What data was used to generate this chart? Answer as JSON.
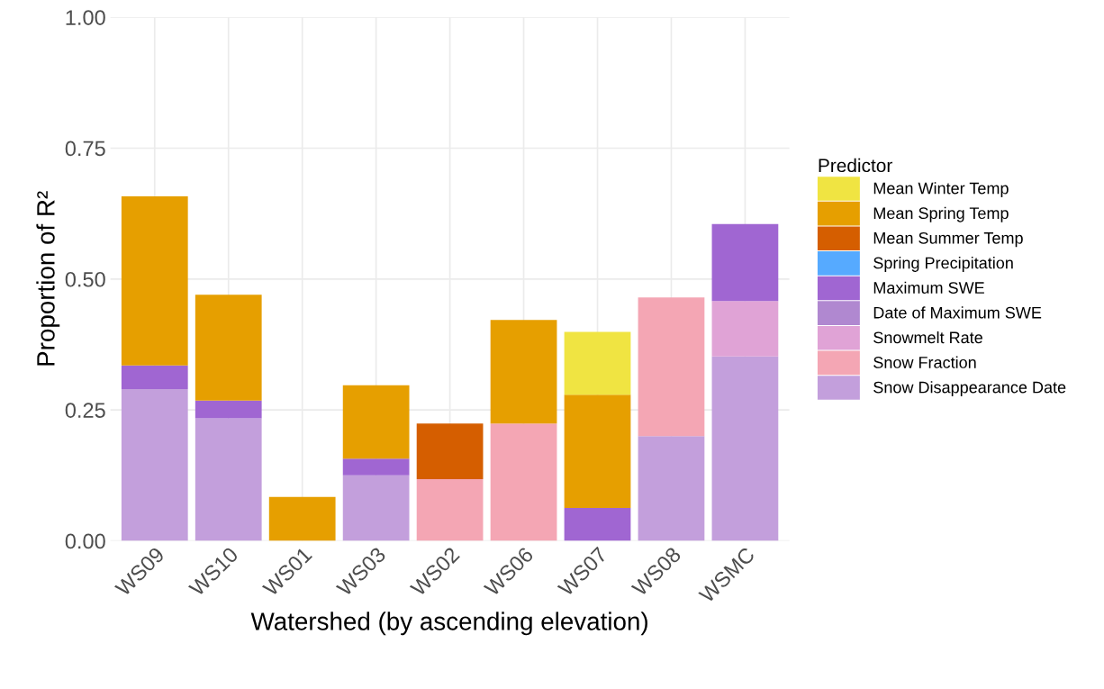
{
  "chart_data": {
    "type": "bar",
    "stacked": true,
    "xlabel": "Watershed (by ascending elevation)",
    "ylabel": "Proportion of R²",
    "legend_title": "Predictor",
    "legend": "right",
    "grid": true,
    "categories": [
      "WS09",
      "WS10",
      "WS01",
      "WS03",
      "WS02",
      "WS06",
      "WS07",
      "WS08",
      "WSMC"
    ],
    "ylim": [
      0,
      1.0
    ],
    "yticks": [
      {
        "value": 0,
        "label": "0.00"
      },
      {
        "value": 0.25,
        "label": "0.25"
      },
      {
        "value": 0.5,
        "label": "0.50"
      },
      {
        "value": 0.75,
        "label": "0.75"
      },
      {
        "value": 1.0,
        "label": "1.00"
      }
    ],
    "series": [
      {
        "name": "Snow Disappearance Date",
        "color": "#c39fdc",
        "values": [
          0.29,
          0.234,
          null,
          0.125,
          null,
          null,
          null,
          0.2,
          0.352
        ]
      },
      {
        "name": "Snow Fraction",
        "color": "#f4a6b4",
        "values": [
          null,
          null,
          null,
          null,
          0.118,
          0.224,
          null,
          0.265,
          null
        ]
      },
      {
        "name": "Snowmelt Rate",
        "color": "#e0a3d6",
        "values": [
          null,
          null,
          null,
          null,
          null,
          null,
          null,
          null,
          0.106
        ]
      },
      {
        "name": "Date of Maximum SWE",
        "color": "#b088d0",
        "values": [
          null,
          null,
          null,
          null,
          null,
          null,
          null,
          null,
          null
        ]
      },
      {
        "name": "Maximum SWE",
        "color": "#a066d2",
        "values": [
          0.045,
          0.034,
          null,
          0.032,
          null,
          null,
          0.063,
          null,
          0.147
        ]
      },
      {
        "name": "Spring Precipitation",
        "color": "#56aaff",
        "values": [
          null,
          null,
          null,
          null,
          null,
          null,
          null,
          null,
          null
        ]
      },
      {
        "name": "Mean Summer Temp",
        "color": "#d55e00",
        "values": [
          null,
          null,
          null,
          null,
          0.106,
          null,
          null,
          null,
          null
        ]
      },
      {
        "name": "Mean Spring Temp",
        "color": "#e69f00",
        "values": [
          0.323,
          0.202,
          0.084,
          0.14,
          null,
          0.198,
          0.216,
          null,
          null
        ]
      },
      {
        "name": "Mean Winter Temp",
        "color": "#f0e442",
        "values": [
          null,
          null,
          null,
          null,
          null,
          null,
          0.12,
          null,
          null
        ]
      }
    ]
  }
}
